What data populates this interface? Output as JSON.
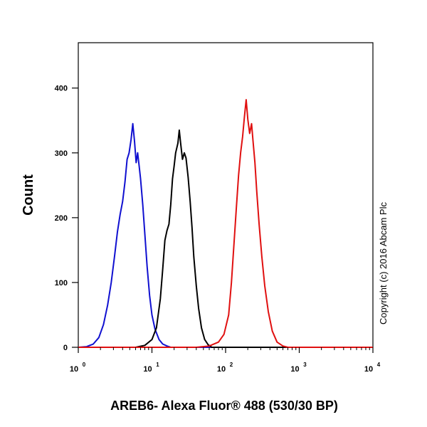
{
  "chart_data": {
    "type": "line",
    "title": "",
    "xlabel": "AREB6- Alexa Fluor® 488 (530/30 BP)",
    "ylabel": "Count",
    "xscale": "log",
    "xlim": [
      1,
      10000
    ],
    "ylim": [
      0,
      470
    ],
    "yticks": [
      0,
      100,
      200,
      300,
      400
    ],
    "xticks": [
      {
        "base": "10",
        "exp": "0",
        "value": 1
      },
      {
        "base": "10",
        "exp": "1",
        "value": 10
      },
      {
        "base": "10",
        "exp": "2",
        "value": 100
      },
      {
        "base": "10",
        "exp": "3",
        "value": 1000
      },
      {
        "base": "10",
        "exp": "4",
        "value": 10000
      }
    ],
    "grid": false,
    "annotation": "Copyright (c) 2016 Abcam Plc",
    "series": [
      {
        "color": "#1010d0",
        "points": [
          [
            1.0,
            0
          ],
          [
            1.3,
            1
          ],
          [
            1.6,
            5
          ],
          [
            1.9,
            15
          ],
          [
            2.2,
            35
          ],
          [
            2.5,
            65
          ],
          [
            2.8,
            100
          ],
          [
            3.1,
            140
          ],
          [
            3.4,
            178
          ],
          [
            3.7,
            205
          ],
          [
            4.0,
            225
          ],
          [
            4.3,
            255
          ],
          [
            4.6,
            290
          ],
          [
            4.9,
            300
          ],
          [
            5.2,
            320
          ],
          [
            5.5,
            345
          ],
          [
            5.8,
            318
          ],
          [
            6.1,
            285
          ],
          [
            6.4,
            300
          ],
          [
            6.7,
            280
          ],
          [
            7.0,
            260
          ],
          [
            7.5,
            220
          ],
          [
            8.0,
            175
          ],
          [
            8.6,
            125
          ],
          [
            9.3,
            80
          ],
          [
            10.0,
            50
          ],
          [
            11.0,
            28
          ],
          [
            12.5,
            12
          ],
          [
            14.0,
            5
          ],
          [
            16.0,
            2
          ],
          [
            18.0,
            0
          ],
          [
            100.0,
            0
          ],
          [
            1000.0,
            0
          ],
          [
            10000.0,
            0
          ]
        ]
      },
      {
        "color": "#000000",
        "points": [
          [
            1.0,
            0
          ],
          [
            6.0,
            0
          ],
          [
            8.0,
            3
          ],
          [
            10.0,
            12
          ],
          [
            11.5,
            30
          ],
          [
            13.0,
            75
          ],
          [
            14.0,
            120
          ],
          [
            15.0,
            165
          ],
          [
            16.0,
            180
          ],
          [
            17.0,
            190
          ],
          [
            18.0,
            220
          ],
          [
            19.0,
            260
          ],
          [
            20.0,
            280
          ],
          [
            21.0,
            300
          ],
          [
            22.5,
            315
          ],
          [
            23.5,
            335
          ],
          [
            24.5,
            315
          ],
          [
            26.0,
            290
          ],
          [
            27.5,
            300
          ],
          [
            29.0,
            292
          ],
          [
            31.0,
            262
          ],
          [
            33.0,
            225
          ],
          [
            35.0,
            185
          ],
          [
            37.0,
            140
          ],
          [
            40.0,
            95
          ],
          [
            43.0,
            60
          ],
          [
            47.0,
            30
          ],
          [
            52.0,
            12
          ],
          [
            58.0,
            4
          ],
          [
            65.0,
            0
          ],
          [
            1000.0,
            0
          ],
          [
            10000.0,
            0
          ]
        ]
      },
      {
        "color": "#e01010",
        "points": [
          [
            1.0,
            0
          ],
          [
            40.0,
            0
          ],
          [
            60.0,
            2
          ],
          [
            80.0,
            8
          ],
          [
            95.0,
            20
          ],
          [
            110.0,
            50
          ],
          [
            120.0,
            100
          ],
          [
            130.0,
            160
          ],
          [
            140.0,
            215
          ],
          [
            150.0,
            265
          ],
          [
            160.0,
            300
          ],
          [
            170.0,
            325
          ],
          [
            180.0,
            355
          ],
          [
            190.0,
            382
          ],
          [
            200.0,
            352
          ],
          [
            212.0,
            330
          ],
          [
            225.0,
            345
          ],
          [
            235.0,
            320
          ],
          [
            250.0,
            285
          ],
          [
            265.0,
            240
          ],
          [
            285.0,
            190
          ],
          [
            310.0,
            140
          ],
          [
            340.0,
            95
          ],
          [
            380.0,
            55
          ],
          [
            430.0,
            25
          ],
          [
            500.0,
            8
          ],
          [
            600.0,
            2
          ],
          [
            700.0,
            0
          ],
          [
            10000.0,
            0
          ]
        ]
      }
    ]
  }
}
